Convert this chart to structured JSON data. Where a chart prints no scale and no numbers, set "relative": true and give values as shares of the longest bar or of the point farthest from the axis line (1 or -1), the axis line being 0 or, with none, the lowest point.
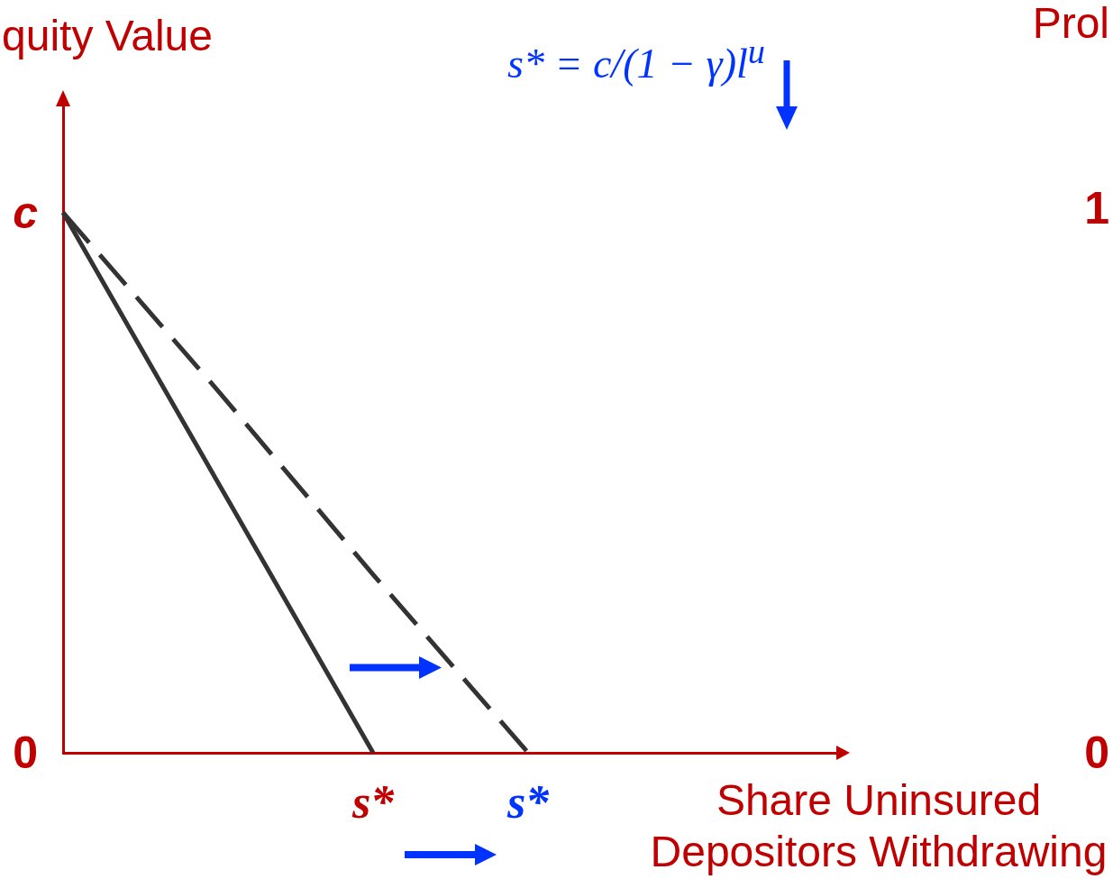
{
  "chart_data": {
    "type": "line",
    "relative": true,
    "xlabel": "Share Uninsured Depositors Withdrawing",
    "ylabel": "quity Value",
    "annotations": [
      "s* = c/(1 − γ)l$^{u}$",
      "c",
      "0",
      "Prol",
      "1",
      "0"
    ],
    "categories": [
      null,
      null,
      "s*",
      "s*",
      null,
      null
    ],
    "series": [
      {
        "color": "#333333",
        "values": [
          1,
          0.5,
          0,
          null,
          null,
          null
        ]
      },
      {
        "color": "#333333",
        "values": [
          1,
          0.67,
          0.33,
          0,
          null,
          null
        ],
        "line_style": "dashed"
      }
    ],
    "grid": false,
    "legend": false
  }
}
